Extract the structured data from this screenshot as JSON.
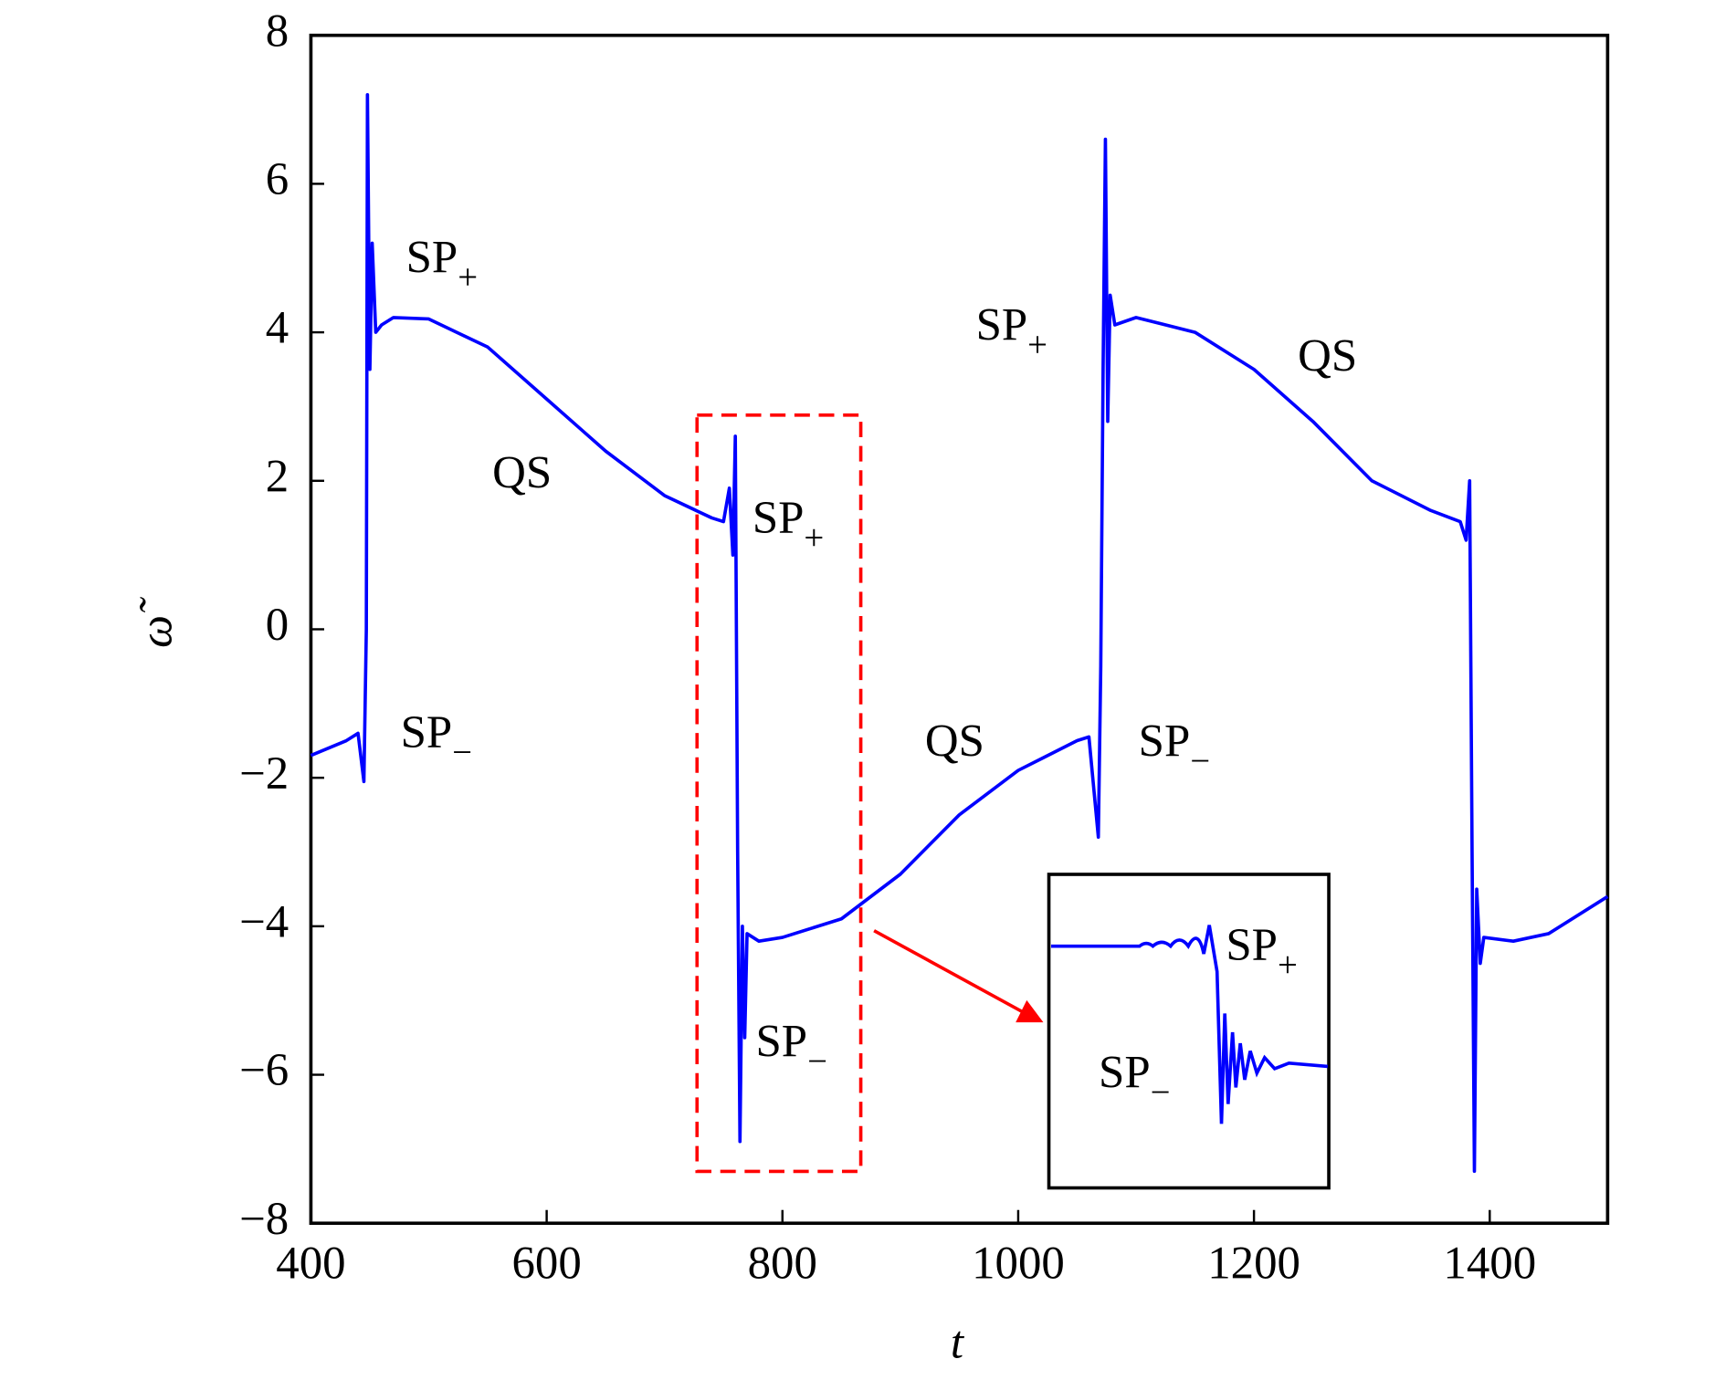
{
  "chart_data": {
    "type": "line",
    "xlabel": "t",
    "ylabel": "ω̃",
    "xlim": [
      400,
      1500
    ],
    "ylim": [
      -8,
      8
    ],
    "xticks": [
      400,
      600,
      800,
      1000,
      1200,
      1400
    ],
    "yticks": [
      {
        "value": -8,
        "label": "−8"
      },
      {
        "value": -6,
        "label": "−6"
      },
      {
        "value": -4,
        "label": "−4"
      },
      {
        "value": -2,
        "label": "−2"
      },
      0,
      2,
      4,
      6,
      8
    ],
    "color": "#0000ff",
    "x": [
      400,
      430,
      440,
      445,
      447,
      448,
      450,
      452,
      455,
      460,
      470,
      500,
      550,
      600,
      650,
      700,
      740,
      750,
      755,
      758,
      760,
      762,
      764,
      766,
      768,
      770,
      780,
      800,
      850,
      900,
      950,
      1000,
      1050,
      1060,
      1068,
      1070,
      1072,
      1074,
      1076,
      1078,
      1082,
      1100,
      1150,
      1200,
      1250,
      1300,
      1350,
      1375,
      1380,
      1383,
      1385,
      1387,
      1389,
      1392,
      1395,
      1420,
      1450,
      1500
    ],
    "values": [
      -1.7,
      -1.5,
      -1.4,
      -2.05,
      0,
      7.2,
      3.5,
      5.2,
      4.0,
      4.1,
      4.2,
      4.18,
      3.8,
      3.1,
      2.4,
      1.8,
      1.5,
      1.45,
      1.9,
      1.0,
      2.6,
      -3,
      -6.9,
      -4,
      -5.5,
      -4.1,
      -4.2,
      -4.15,
      -3.9,
      -3.3,
      -2.5,
      -1.9,
      -1.5,
      -1.45,
      -2.8,
      -0.5,
      3.5,
      6.6,
      2.8,
      4.5,
      4.1,
      4.2,
      4.0,
      3.5,
      2.8,
      2.0,
      1.6,
      1.45,
      1.2,
      2.0,
      -3,
      -7.3,
      -3.5,
      -4.5,
      -4.15,
      -4.2,
      -4.1,
      -3.6
    ],
    "annotations": [
      {
        "text": "SP",
        "sub": "+"
      },
      {
        "text": "QS"
      },
      {
        "text": "SP",
        "sub": "+"
      },
      {
        "text": "SP",
        "sub": "−"
      },
      {
        "text": "QS"
      },
      {
        "text": "SP",
        "sub": "−"
      },
      {
        "text": "SP",
        "sub": "+"
      },
      {
        "text": "QS"
      },
      {
        "text": "SP",
        "sub": "−"
      }
    ],
    "inset_labels": [
      {
        "text": "SP",
        "sub": "+"
      },
      {
        "text": "SP",
        "sub": "−"
      }
    ]
  }
}
